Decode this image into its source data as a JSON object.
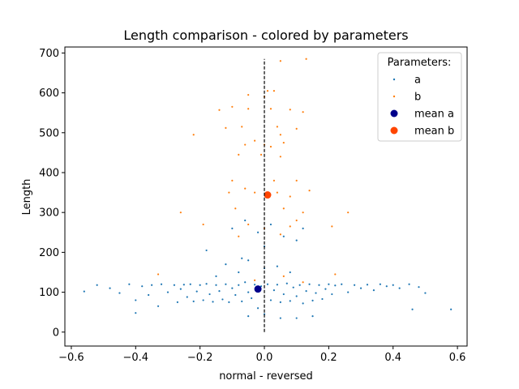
{
  "chart_data": {
    "type": "scatter",
    "title": "Length comparison - colored by parameters",
    "xlabel": "normal - reversed",
    "ylabel": "Length",
    "xlim": [
      -0.62,
      0.63
    ],
    "ylim": [
      -35,
      715
    ],
    "xticks": [
      -0.6,
      -0.4,
      -0.2,
      0.0,
      0.2,
      0.4,
      0.6
    ],
    "xtick_labels": [
      "−0.6",
      "−0.4",
      "−0.2",
      "0.0",
      "0.2",
      "0.4",
      "0.6"
    ],
    "yticks": [
      0,
      100,
      200,
      300,
      400,
      500,
      600,
      700
    ],
    "ytick_labels": [
      "0",
      "100",
      "200",
      "300",
      "400",
      "500",
      "600",
      "700"
    ],
    "grid": false,
    "legend": {
      "title": "Parameters:",
      "position": "top-right",
      "entries": [
        "a",
        "b",
        "mean a",
        "mean b"
      ]
    },
    "reference_line": {
      "x": 0.0,
      "y_range": [
        0,
        685
      ],
      "style": "dashed",
      "color": "#000000"
    },
    "series": [
      {
        "name": "a",
        "color": "#1f77b4",
        "marker": "dot-small",
        "points": [
          [
            -0.56,
            102
          ],
          [
            -0.52,
            118
          ],
          [
            -0.48,
            110
          ],
          [
            -0.45,
            98
          ],
          [
            -0.42,
            120
          ],
          [
            -0.4,
            80
          ],
          [
            -0.38,
            115
          ],
          [
            -0.36,
            93
          ],
          [
            -0.35,
            118
          ],
          [
            -0.33,
            65
          ],
          [
            -0.32,
            120
          ],
          [
            -0.3,
            100
          ],
          [
            -0.28,
            118
          ],
          [
            -0.27,
            75
          ],
          [
            -0.26,
            108
          ],
          [
            -0.25,
            119
          ],
          [
            -0.24,
            88
          ],
          [
            -0.23,
            120
          ],
          [
            -0.22,
            77
          ],
          [
            -0.21,
            102
          ],
          [
            -0.2,
            118
          ],
          [
            -0.19,
            80
          ],
          [
            -0.18,
            121
          ],
          [
            -0.17,
            95
          ],
          [
            -0.16,
            76
          ],
          [
            -0.15,
            118
          ],
          [
            -0.14,
            103
          ],
          [
            -0.13,
            82
          ],
          [
            -0.12,
            120
          ],
          [
            -0.11,
            75
          ],
          [
            -0.1,
            110
          ],
          [
            -0.09,
            93
          ],
          [
            -0.08,
            118
          ],
          [
            -0.07,
            77
          ],
          [
            -0.06,
            125
          ],
          [
            -0.05,
            100
          ],
          [
            -0.04,
            85
          ],
          [
            -0.03,
            119
          ],
          [
            -0.02,
            60
          ],
          [
            -0.01,
            115
          ],
          [
            0.0,
            45
          ],
          [
            0.01,
            120
          ],
          [
            0.02,
            80
          ],
          [
            0.03,
            105
          ],
          [
            0.04,
            119
          ],
          [
            0.05,
            75
          ],
          [
            0.06,
            95
          ],
          [
            0.07,
            122
          ],
          [
            0.08,
            78
          ],
          [
            0.09,
            112
          ],
          [
            0.1,
            90
          ],
          [
            0.11,
            118
          ],
          [
            0.12,
            72
          ],
          [
            0.13,
            103
          ],
          [
            0.14,
            120
          ],
          [
            0.15,
            79
          ],
          [
            0.16,
            98
          ],
          [
            0.17,
            118
          ],
          [
            0.18,
            83
          ],
          [
            0.19,
            108
          ],
          [
            0.2,
            120
          ],
          [
            0.21,
            95
          ],
          [
            0.22,
            117
          ],
          [
            0.24,
            120
          ],
          [
            0.26,
            100
          ],
          [
            0.28,
            118
          ],
          [
            0.3,
            110
          ],
          [
            0.32,
            119
          ],
          [
            0.34,
            105
          ],
          [
            0.36,
            120
          ],
          [
            0.38,
            115
          ],
          [
            0.4,
            118
          ],
          [
            0.42,
            110
          ],
          [
            0.45,
            120
          ],
          [
            0.48,
            113
          ],
          [
            0.5,
            98
          ],
          [
            0.46,
            57
          ],
          [
            0.58,
            57
          ],
          [
            -0.4,
            48
          ],
          [
            -0.05,
            40
          ],
          [
            0.05,
            35
          ],
          [
            0.1,
            35
          ],
          [
            0.15,
            40
          ],
          [
            -0.12,
            170
          ],
          [
            -0.08,
            150
          ],
          [
            -0.05,
            180
          ],
          [
            0.0,
            160
          ],
          [
            0.04,
            165
          ],
          [
            0.08,
            150
          ],
          [
            -0.18,
            205
          ],
          [
            -0.15,
            140
          ],
          [
            -0.1,
            260
          ],
          [
            -0.06,
            280
          ],
          [
            -0.02,
            250
          ],
          [
            0.02,
            270
          ],
          [
            0.06,
            240
          ],
          [
            0.1,
            230
          ],
          [
            0.12,
            260
          ],
          [
            0.0,
            215
          ],
          [
            -0.07,
            185
          ]
        ]
      },
      {
        "name": "b",
        "color": "#ff7f0e",
        "marker": "dot-small",
        "points": [
          [
            0.13,
            685
          ],
          [
            0.05,
            680
          ],
          [
            0.01,
            605
          ],
          [
            0.03,
            605
          ],
          [
            -0.05,
            595
          ],
          [
            0.0,
            590
          ],
          [
            -0.1,
            565
          ],
          [
            -0.05,
            560
          ],
          [
            0.02,
            560
          ],
          [
            0.08,
            558
          ],
          [
            0.12,
            552
          ],
          [
            -0.14,
            557
          ],
          [
            -0.12,
            512
          ],
          [
            -0.07,
            515
          ],
          [
            0.04,
            515
          ],
          [
            0.1,
            510
          ],
          [
            -0.22,
            495
          ],
          [
            0.05,
            495
          ],
          [
            -0.06,
            470
          ],
          [
            -0.03,
            480
          ],
          [
            0.0,
            470
          ],
          [
            0.06,
            475
          ],
          [
            0.02,
            465
          ],
          [
            -0.08,
            445
          ],
          [
            -0.01,
            445
          ],
          [
            0.05,
            440
          ],
          [
            0.1,
            380
          ],
          [
            -0.1,
            380
          ],
          [
            0.03,
            380
          ],
          [
            -0.06,
            360
          ],
          [
            -0.03,
            350
          ],
          [
            0.01,
            345
          ],
          [
            0.04,
            350
          ],
          [
            0.08,
            340
          ],
          [
            -0.11,
            350
          ],
          [
            0.14,
            355
          ],
          [
            -0.26,
            300
          ],
          [
            -0.09,
            310
          ],
          [
            0.06,
            310
          ],
          [
            0.12,
            300
          ],
          [
            0.26,
            300
          ],
          [
            -0.19,
            270
          ],
          [
            -0.05,
            270
          ],
          [
            0.0,
            260
          ],
          [
            0.08,
            265
          ],
          [
            0.21,
            265
          ],
          [
            -0.08,
            240
          ],
          [
            0.05,
            245
          ],
          [
            0.1,
            280
          ],
          [
            -0.33,
            145
          ],
          [
            0.22,
            145
          ],
          [
            0.06,
            140
          ],
          [
            -0.03,
            130
          ],
          [
            0.12,
            125
          ]
        ]
      },
      {
        "name": "mean a",
        "color": "#00008b",
        "marker": "dot-large",
        "points": [
          [
            -0.02,
            108
          ]
        ]
      },
      {
        "name": "mean b",
        "color": "#ff4500",
        "marker": "dot-large",
        "points": [
          [
            0.01,
            344
          ]
        ]
      }
    ]
  }
}
